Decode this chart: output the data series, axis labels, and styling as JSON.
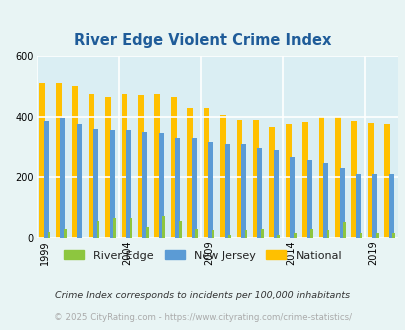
{
  "title": "River Edge Violent Crime Index",
  "years": [
    1999,
    2000,
    2001,
    2002,
    2003,
    2004,
    2005,
    2006,
    2007,
    2008,
    2009,
    2010,
    2011,
    2012,
    2013,
    2014,
    2015,
    2016,
    2017,
    2018,
    2019,
    2020
  ],
  "river_edge": [
    20,
    30,
    0,
    55,
    65,
    65,
    35,
    70,
    55,
    30,
    25,
    10,
    25,
    30,
    10,
    15,
    30,
    25,
    50,
    15,
    15,
    15
  ],
  "new_jersey": [
    385,
    395,
    375,
    360,
    355,
    355,
    350,
    345,
    330,
    330,
    315,
    310,
    310,
    295,
    290,
    265,
    257,
    245,
    230,
    210,
    210,
    210
  ],
  "national": [
    510,
    510,
    500,
    475,
    465,
    475,
    470,
    475,
    465,
    430,
    430,
    405,
    390,
    390,
    365,
    375,
    383,
    400,
    398,
    385,
    380,
    375
  ],
  "river_edge_color": "#8dc63f",
  "new_jersey_color": "#5b9bd5",
  "national_color": "#ffc000",
  "bg_color": "#e8f4f4",
  "plot_bg_color": "#daeef3",
  "grid_color": "#ffffff",
  "title_color": "#1f5c99",
  "ylabel_max": 600,
  "yticks": [
    0,
    200,
    400,
    600
  ],
  "xtick_years": [
    1999,
    2004,
    2009,
    2014,
    2019
  ],
  "legend_labels": [
    "River Edge",
    "New Jersey",
    "National"
  ],
  "footnote1": "Crime Index corresponds to incidents per 100,000 inhabitants",
  "footnote2": "© 2025 CityRating.com - https://www.cityrating.com/crime-statistics/",
  "footnote2_color": "#aaaaaa",
  "footnote1_color": "#333333"
}
